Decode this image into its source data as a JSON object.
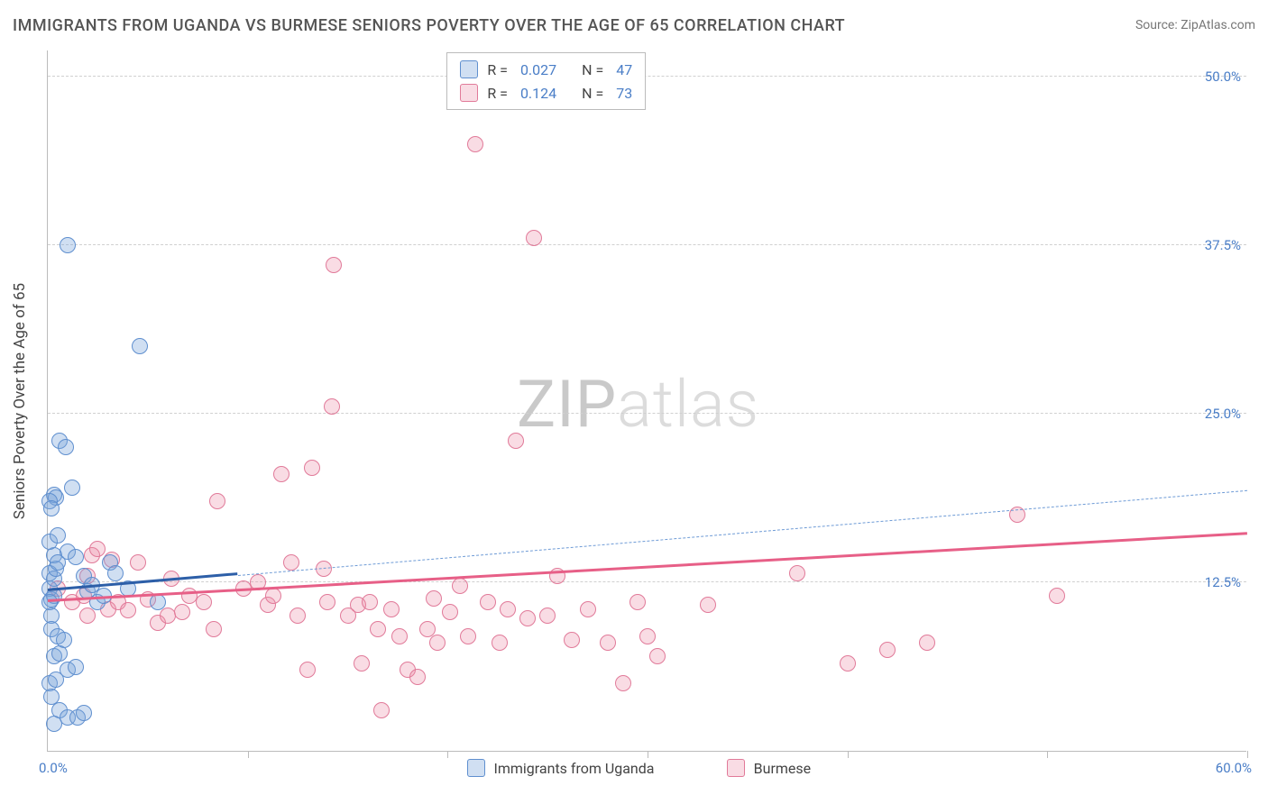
{
  "title": "IMMIGRANTS FROM UGANDA VS BURMESE SENIORS POVERTY OVER THE AGE OF 65 CORRELATION CHART",
  "source": "Source: ZipAtlas.com",
  "y_axis_label": "Seniors Poverty Over the Age of 65",
  "watermark_bold": "ZIP",
  "watermark_light": "atlas",
  "plot": {
    "x_domain": [
      0,
      60
    ],
    "y_domain": [
      0,
      52
    ],
    "x_origin_label": "0.0%",
    "x_max_label": "60.0%",
    "y_ticks": [
      {
        "v": 12.5,
        "label": "12.5%"
      },
      {
        "v": 25.0,
        "label": "25.0%"
      },
      {
        "v": 37.5,
        "label": "37.5%"
      },
      {
        "v": 50.0,
        "label": "50.0%"
      }
    ],
    "x_tick_positions": [
      10,
      20,
      30,
      40,
      50,
      60
    ]
  },
  "series": {
    "uganda": {
      "label": "Immigrants from Uganda",
      "fill": "rgba(119,163,217,0.35)",
      "stroke": "#5f8fcf",
      "trend_color": "#2d5fa8",
      "trend": {
        "x1": 0,
        "y1": 11.8,
        "x2": 9.5,
        "y2": 13.0,
        "extend_x2": 60,
        "extend_y2": 19.3
      },
      "points": [
        [
          0.1,
          12.0
        ],
        [
          0.2,
          11.2
        ],
        [
          0.3,
          11.5
        ],
        [
          0.1,
          13.2
        ],
        [
          0.2,
          10.0
        ],
        [
          0.3,
          12.8
        ],
        [
          0.1,
          11.0
        ],
        [
          0.4,
          13.5
        ],
        [
          0.6,
          23.0
        ],
        [
          0.9,
          22.5
        ],
        [
          0.3,
          19.0
        ],
        [
          0.4,
          18.8
        ],
        [
          0.1,
          18.5
        ],
        [
          0.2,
          18.0
        ],
        [
          0.3,
          14.5
        ],
        [
          0.5,
          14.0
        ],
        [
          1.0,
          14.8
        ],
        [
          1.4,
          14.4
        ],
        [
          1.8,
          13.0
        ],
        [
          2.0,
          11.8
        ],
        [
          2.2,
          12.3
        ],
        [
          2.5,
          11.0
        ],
        [
          2.8,
          11.5
        ],
        [
          3.1,
          14.0
        ],
        [
          3.4,
          13.2
        ],
        [
          1.2,
          19.5
        ],
        [
          4.6,
          30.0
        ],
        [
          1.0,
          37.5
        ],
        [
          0.2,
          9.0
        ],
        [
          0.5,
          8.5
        ],
        [
          0.8,
          8.2
        ],
        [
          0.3,
          7.0
        ],
        [
          0.6,
          7.2
        ],
        [
          1.0,
          6.0
        ],
        [
          1.4,
          6.2
        ],
        [
          0.1,
          5.0
        ],
        [
          0.4,
          5.3
        ],
        [
          0.2,
          4.0
        ],
        [
          0.6,
          3.0
        ],
        [
          1.0,
          2.5
        ],
        [
          0.3,
          2.0
        ],
        [
          1.5,
          2.5
        ],
        [
          1.8,
          2.8
        ],
        [
          0.1,
          15.5
        ],
        [
          0.5,
          16.0
        ],
        [
          4.0,
          12.0
        ],
        [
          5.5,
          11.0
        ]
      ]
    },
    "burmese": {
      "label": "Burmese",
      "fill": "rgba(235,140,165,0.30)",
      "stroke": "#e17a99",
      "trend_color": "#e75f87",
      "trend": {
        "x1": 0,
        "y1": 11.0,
        "x2": 60,
        "y2": 16.0
      },
      "points": [
        [
          0.5,
          12.0
        ],
        [
          1.2,
          11.0
        ],
        [
          1.8,
          11.5
        ],
        [
          2.2,
          14.5
        ],
        [
          2.5,
          15.0
        ],
        [
          2.0,
          10.0
        ],
        [
          3.0,
          10.5
        ],
        [
          3.5,
          11.0
        ],
        [
          4.0,
          10.4
        ],
        [
          4.5,
          14.0
        ],
        [
          5.0,
          11.2
        ],
        [
          5.5,
          9.5
        ],
        [
          6.0,
          10.0
        ],
        [
          6.2,
          12.8
        ],
        [
          6.7,
          10.3
        ],
        [
          7.1,
          11.5
        ],
        [
          7.8,
          11.0
        ],
        [
          8.3,
          9.0
        ],
        [
          8.5,
          18.5
        ],
        [
          10.5,
          12.5
        ],
        [
          11.0,
          10.8
        ],
        [
          11.3,
          11.5
        ],
        [
          11.7,
          20.5
        ],
        [
          12.5,
          10.0
        ],
        [
          13.0,
          6.0
        ],
        [
          13.2,
          21.0
        ],
        [
          14.0,
          11.0
        ],
        [
          14.2,
          25.5
        ],
        [
          14.3,
          36.0
        ],
        [
          15.0,
          10.0
        ],
        [
          15.5,
          10.8
        ],
        [
          15.7,
          6.5
        ],
        [
          16.1,
          11.0
        ],
        [
          16.5,
          9.0
        ],
        [
          16.7,
          3.0
        ],
        [
          17.2,
          10.5
        ],
        [
          17.6,
          8.5
        ],
        [
          18.0,
          6.0
        ],
        [
          18.5,
          5.5
        ],
        [
          19.0,
          9.0
        ],
        [
          19.3,
          11.3
        ],
        [
          19.5,
          8.0
        ],
        [
          20.1,
          10.3
        ],
        [
          20.6,
          12.2
        ],
        [
          21.0,
          8.5
        ],
        [
          21.4,
          45.0
        ],
        [
          22.0,
          11.0
        ],
        [
          22.6,
          8.0
        ],
        [
          23.0,
          10.5
        ],
        [
          23.4,
          23.0
        ],
        [
          24.0,
          9.8
        ],
        [
          24.3,
          38.0
        ],
        [
          25.0,
          10.0
        ],
        [
          25.5,
          13.0
        ],
        [
          26.2,
          8.2
        ],
        [
          27.0,
          10.5
        ],
        [
          28.0,
          8.0
        ],
        [
          28.8,
          5.0
        ],
        [
          29.5,
          11.0
        ],
        [
          30.0,
          8.5
        ],
        [
          30.5,
          7.0
        ],
        [
          33.0,
          10.8
        ],
        [
          37.5,
          13.2
        ],
        [
          40.0,
          6.5
        ],
        [
          42.0,
          7.5
        ],
        [
          44.0,
          8.0
        ],
        [
          48.5,
          17.5
        ],
        [
          50.5,
          11.5
        ],
        [
          2.0,
          13.0
        ],
        [
          3.2,
          14.2
        ],
        [
          9.8,
          12.0
        ],
        [
          12.2,
          14.0
        ],
        [
          13.8,
          13.5
        ]
      ]
    }
  },
  "legend_top": {
    "rows": [
      {
        "swatch": "uganda",
        "r_label": "R =",
        "r_val": "0.027",
        "n_label": "N =",
        "n_val": "47"
      },
      {
        "swatch": "burmese",
        "r_label": "R =",
        "r_val": "0.124",
        "n_label": "N =",
        "n_val": "73"
      }
    ]
  },
  "colors": {
    "axis": "#bbbbbb",
    "grid": "#d0d0d0",
    "tick_text": "#4a7ec7",
    "title_text": "#555555",
    "body_text": "#444444",
    "source_text": "#777777"
  }
}
